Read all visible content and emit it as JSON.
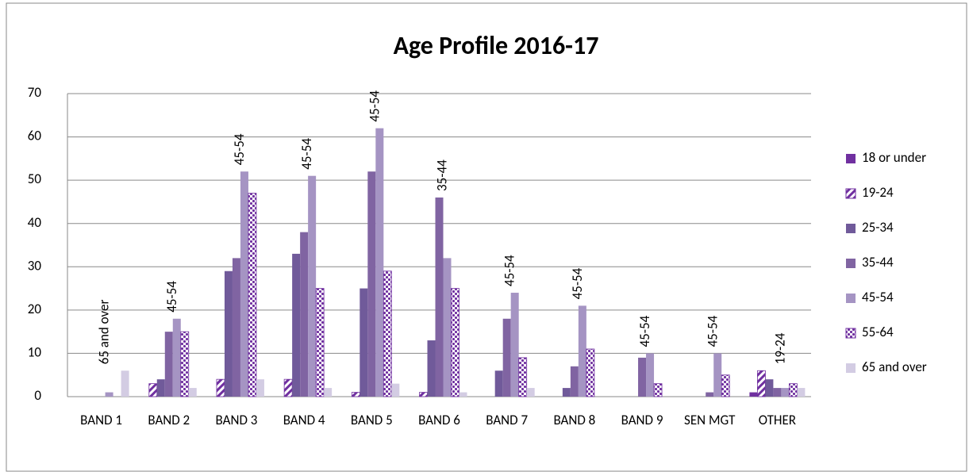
{
  "chart_data": {
    "type": "bar",
    "title": "Age Profile 2016-17",
    "categories": [
      "BAND 1",
      "BAND 2",
      "BAND 3",
      "BAND 4",
      "BAND 5",
      "BAND 6",
      "BAND 7",
      "BAND 8",
      "BAND 9",
      "SEN MGT",
      "OTHER"
    ],
    "group_labels": [
      "65 and over",
      "45-54",
      "45-54",
      "45-54",
      "45-54",
      "35-44",
      "45-54",
      "45-54",
      "45-54",
      "45-54",
      "19-24"
    ],
    "series": [
      {
        "name": "18 or under",
        "color": "#7030a0",
        "pattern": "solid",
        "values": [
          0,
          0,
          0,
          0,
          0,
          0,
          0,
          0,
          0,
          0,
          1
        ]
      },
      {
        "name": "19-24",
        "color": "#7030a0",
        "pattern": "hatch",
        "values": [
          0,
          3,
          4,
          4,
          1,
          1,
          0,
          0,
          0,
          0,
          6
        ]
      },
      {
        "name": "25-34",
        "color": "#705a9a",
        "pattern": "solid",
        "values": [
          0,
          4,
          29,
          33,
          25,
          13,
          6,
          2,
          0,
          0,
          4
        ]
      },
      {
        "name": "35-44",
        "color": "#8064a2",
        "pattern": "solid",
        "values": [
          0,
          15,
          32,
          38,
          52,
          46,
          18,
          7,
          9,
          1,
          2
        ]
      },
      {
        "name": "45-54",
        "color": "#a594c3",
        "pattern": "solid",
        "values": [
          1,
          18,
          52,
          51,
          62,
          32,
          24,
          21,
          10,
          10,
          2
        ]
      },
      {
        "name": "55-64",
        "color": "#7030a0",
        "pattern": "dots",
        "values": [
          0,
          15,
          47,
          25,
          29,
          25,
          9,
          11,
          3,
          5,
          3
        ]
      },
      {
        "name": "65 and over",
        "color": "#d3cce3",
        "pattern": "solid",
        "values": [
          6,
          2,
          4,
          2,
          3,
          1,
          2,
          0,
          0,
          0,
          2
        ]
      }
    ],
    "ylim": [
      0,
      70
    ],
    "yticks": [
      0,
      10,
      20,
      30,
      40,
      50,
      60,
      70
    ],
    "grid": true,
    "legend": "right"
  }
}
